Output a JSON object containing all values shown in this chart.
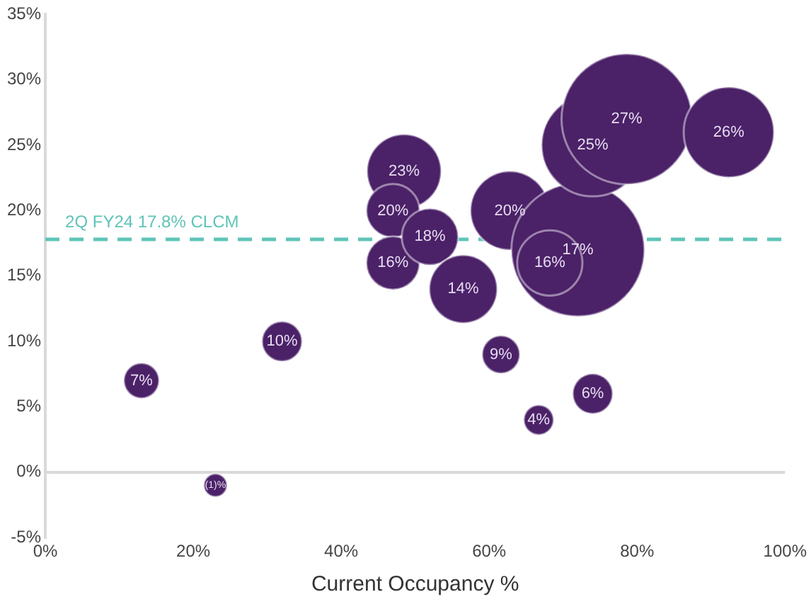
{
  "chart_data": {
    "type": "bubble",
    "xlabel": "Current Occupancy %",
    "x": [
      13,
      23,
      32,
      48.5,
      47,
      47,
      52,
      56.5,
      62.8,
      61.6,
      66.7,
      74,
      72,
      68.2,
      74,
      78.6,
      92.4
    ],
    "series": [
      {
        "color": "#4b2168",
        "values": [
          7,
          -1,
          10,
          23,
          20,
          16,
          18,
          14,
          20,
          9,
          4,
          6,
          17,
          16,
          25,
          27,
          26
        ],
        "sizes": [
          0.07,
          0.03,
          0.09,
          0.31,
          0.16,
          0.16,
          0.18,
          0.26,
          0.35,
          0.08,
          0.05,
          0.09,
          1,
          0.24,
          0.59,
          0.96,
          0.46
        ],
        "value_labels": [
          "7%",
          "(1)%",
          "10%",
          "23%",
          "20%",
          "16%",
          "18%",
          "14%",
          "20%",
          "9%",
          "4%",
          "6%",
          "17%",
          "16%",
          "25%",
          "27%",
          "26%"
        ]
      }
    ],
    "xlim": [
      0,
      100
    ],
    "xticks": [
      {
        "value": 0,
        "label": "0%"
      },
      {
        "value": 20,
        "label": "20%"
      },
      {
        "value": 40,
        "label": "40%"
      },
      {
        "value": 60,
        "label": "60%"
      },
      {
        "value": 80,
        "label": "80%"
      },
      {
        "value": 100,
        "label": "100%"
      }
    ],
    "ylim": [
      -5,
      35
    ],
    "yticks": [
      {
        "value": -5,
        "label": "-5%"
      },
      {
        "value": 0,
        "label": "0%"
      },
      {
        "value": 5,
        "label": "5%"
      },
      {
        "value": 10,
        "label": "10%"
      },
      {
        "value": 15,
        "label": "15%"
      },
      {
        "value": 20,
        "label": "20%"
      },
      {
        "value": 25,
        "label": "25%"
      },
      {
        "value": 30,
        "label": "30%"
      },
      {
        "value": 35,
        "label": "35%"
      }
    ],
    "ref_lines": [
      {
        "axis": "y",
        "value": 17.8,
        "label": "2Q FY24 17.8% CLCM",
        "color": "#5fc4b8",
        "line_style": "dashed"
      }
    ]
  }
}
